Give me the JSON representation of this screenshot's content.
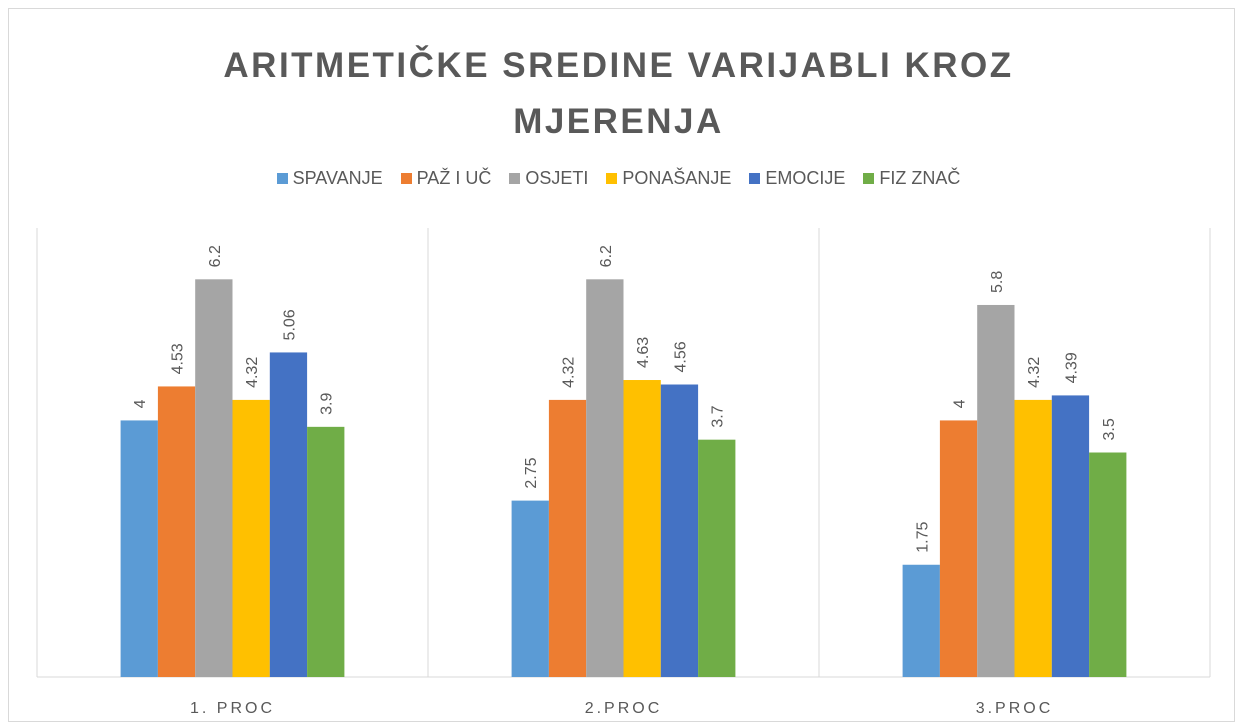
{
  "chart_data": {
    "type": "bar",
    "title": "ARITMETIČKE SREDINE VARIJABLI KROZ MJERENJA",
    "categories": [
      "1. PROC",
      "2.PROC",
      "3.PROC"
    ],
    "series": [
      {
        "name": "SPAVANJE",
        "color": "#5b9bd5",
        "values": [
          4,
          2.75,
          1.75
        ]
      },
      {
        "name": "PAŽ I UČ",
        "color": "#ed7d31",
        "values": [
          4.53,
          4.32,
          4
        ]
      },
      {
        "name": "OSJETI",
        "color": "#a5a5a5",
        "values": [
          6.2,
          6.2,
          5.8
        ]
      },
      {
        "name": "PONAŠANJE",
        "color": "#ffc000",
        "values": [
          4.32,
          4.63,
          4.32
        ]
      },
      {
        "name": "EMOCIJE",
        "color": "#4472c4",
        "values": [
          5.06,
          4.56,
          4.39
        ]
      },
      {
        "name": "FIZ ZNAČ",
        "color": "#70ad47",
        "values": [
          3.9,
          3.7,
          3.5
        ]
      }
    ],
    "ylim": [
      0,
      7
    ],
    "legend": "top"
  }
}
